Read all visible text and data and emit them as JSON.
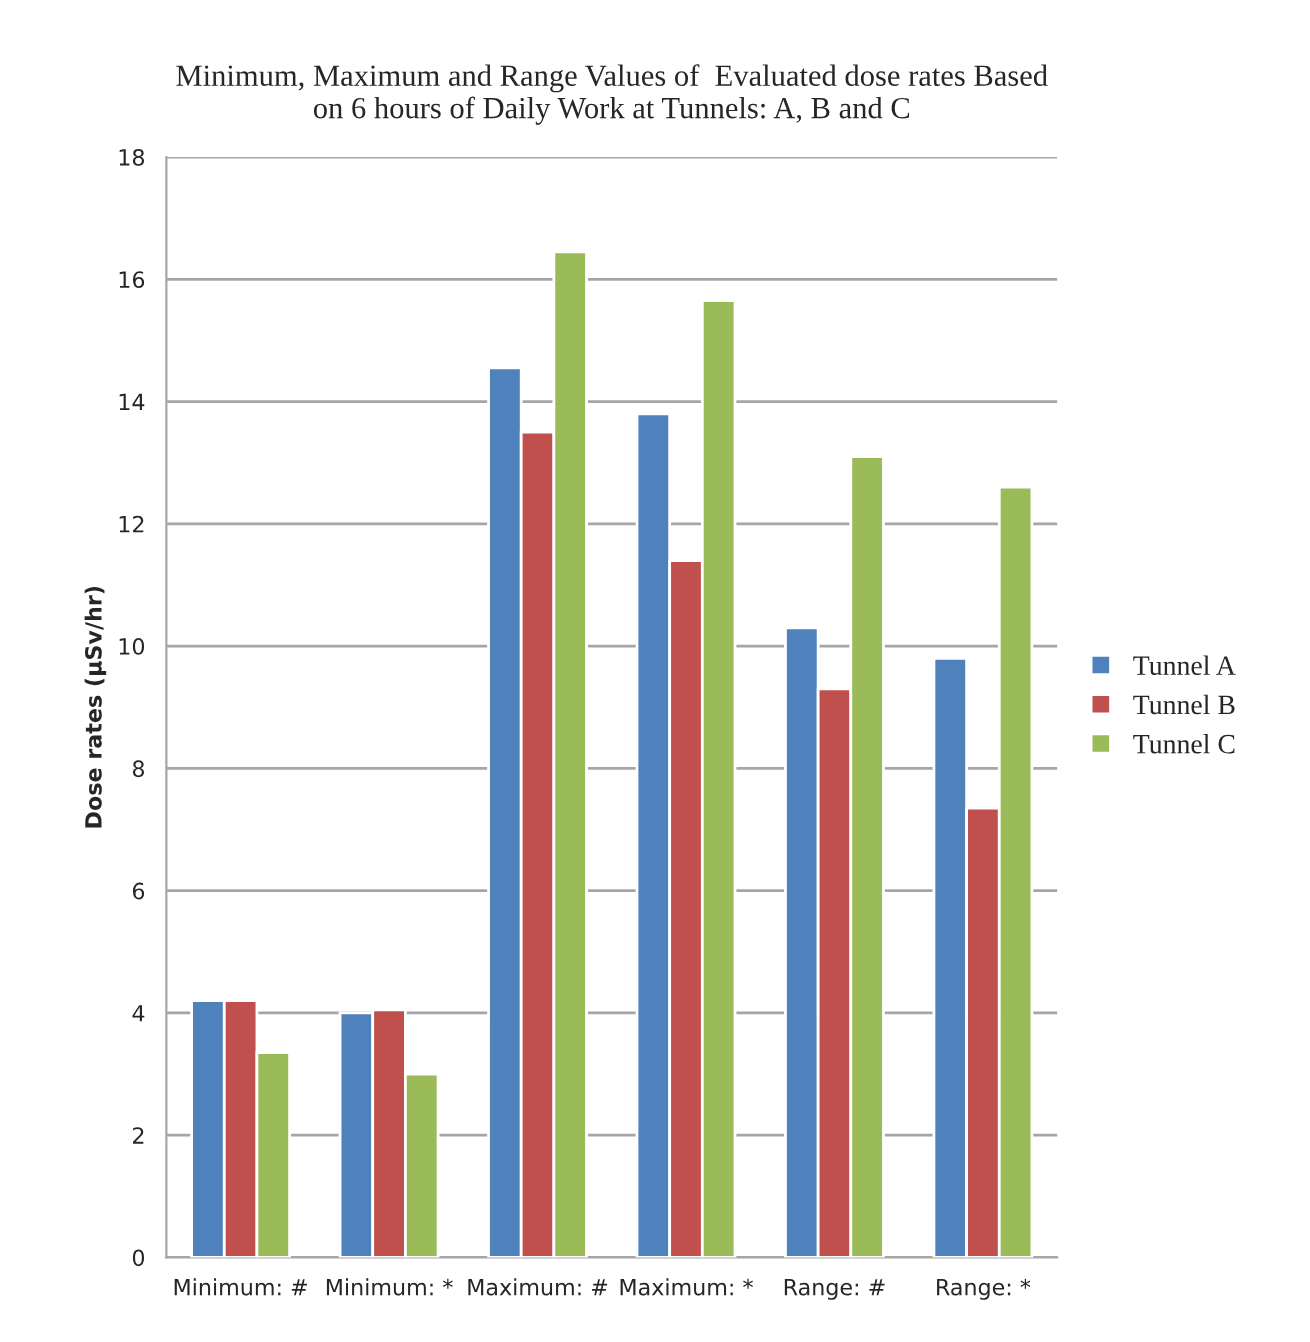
{
  "chart_data": {
    "type": "bar",
    "title": "Minimum, Maximum and Range Values of  Evaluated dose rates Based\non 6 hours of Daily Work at Tunnels: A, B and C",
    "ylabel": "Dose rates (µSv/hr)",
    "categories": [
      "Minimum: #",
      "Minimum: *",
      "Maximum: #",
      "Maximum: *",
      "Range: #",
      "Range: *"
    ],
    "series": [
      {
        "name": "Tunnel A",
        "color": "#4f81bd",
        "values": [
          4.2,
          4.0,
          14.55,
          13.8,
          10.3,
          9.8
        ]
      },
      {
        "name": "Tunnel B",
        "color": "#c0504d",
        "values": [
          4.2,
          4.05,
          13.5,
          11.4,
          9.3,
          7.35
        ]
      },
      {
        "name": "Tunnel C",
        "color": "#9bbb59",
        "values": [
          3.35,
          3.0,
          16.45,
          15.65,
          13.1,
          12.6
        ]
      }
    ],
    "ylim": [
      0,
      18
    ],
    "yticks": [
      0,
      2,
      4,
      6,
      8,
      10,
      12,
      14,
      16,
      18
    ],
    "grid": "y",
    "legend": "right"
  }
}
